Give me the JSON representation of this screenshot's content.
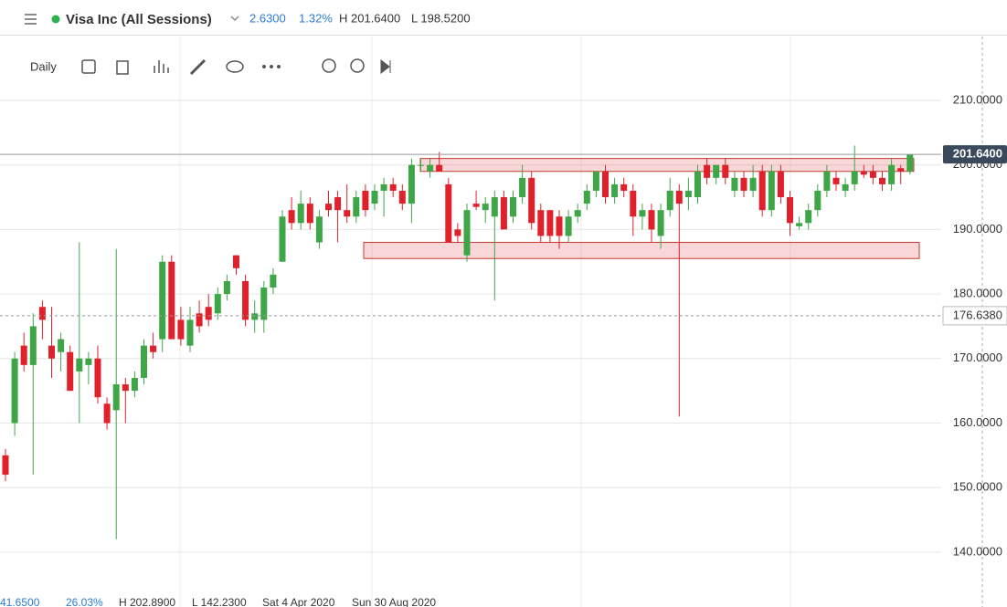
{
  "header": {
    "instrument": "Visa Inc (All Sessions)",
    "change": "2.6300",
    "change_pct": "1.32%",
    "high": "H 201.6400",
    "low": "L 198.5200"
  },
  "toolbar": {
    "interval": "Daily"
  },
  "footer": {
    "change": "41.6500",
    "change_pct": "26.03%",
    "high": "H 202.8900",
    "low": "L 142.2300",
    "from": "Sat 4 Apr 2020",
    "to": "Sun 30 Aug 2020"
  },
  "chart_data": {
    "type": "candlestick",
    "open": [
      155,
      160,
      172,
      169,
      178,
      172,
      171,
      171,
      168,
      169,
      170,
      163,
      162,
      166,
      165,
      167,
      172,
      173,
      185,
      176,
      172,
      177,
      178,
      177,
      180,
      186,
      182,
      176,
      176,
      181,
      185,
      193,
      191,
      194,
      188,
      194,
      195,
      193,
      192,
      196,
      194,
      196,
      197,
      196,
      194,
      200,
      199,
      200,
      197,
      190,
      186,
      194,
      193,
      192,
      195,
      192,
      195,
      198,
      193,
      193,
      192,
      189,
      192,
      194,
      196,
      199,
      195,
      197,
      196,
      192,
      193,
      189,
      193,
      196,
      195,
      195,
      200,
      198,
      200,
      196,
      198,
      196,
      199,
      193,
      199,
      195,
      190.5,
      191,
      193,
      196,
      198,
      196,
      197,
      199,
      199,
      198,
      197,
      199.5,
      199
    ],
    "high": [
      156,
      171,
      174,
      177,
      179,
      178,
      174,
      172,
      188,
      171,
      172,
      164,
      187,
      167,
      168,
      173,
      174,
      186,
      186,
      178,
      178,
      179,
      180,
      181,
      183,
      186,
      183,
      179,
      182,
      184,
      193,
      195,
      196,
      195,
      193,
      196,
      196,
      197,
      196,
      197,
      197,
      198,
      198,
      197,
      201,
      201,
      201,
      202,
      198,
      191,
      194,
      196,
      195,
      196,
      196,
      196,
      200,
      199,
      194,
      193,
      193,
      193,
      194,
      197,
      199,
      200,
      198,
      198,
      197,
      194,
      194,
      194,
      198,
      197,
      198,
      200,
      201,
      200,
      201,
      199,
      199,
      200,
      200,
      200,
      200,
      196,
      192,
      194,
      197,
      200,
      199,
      198,
      203,
      200,
      200,
      199,
      201,
      200,
      201.64
    ],
    "low": [
      151,
      158,
      168,
      152,
      173,
      167,
      168,
      165,
      160,
      166,
      163,
      159,
      142,
      160,
      164,
      166,
      170,
      171,
      173,
      172,
      171,
      174,
      175,
      176,
      179,
      183,
      175,
      174,
      174,
      180,
      185,
      190,
      190,
      190,
      187,
      192,
      188,
      191,
      191,
      192,
      193,
      192,
      195,
      193,
      191,
      199,
      198,
      199,
      188,
      188,
      185,
      193,
      191,
      179,
      190,
      191,
      194,
      190,
      188,
      188,
      187,
      188,
      191,
      193,
      195,
      194,
      194,
      195,
      189,
      190,
      188,
      187,
      192,
      161,
      193,
      194,
      197,
      197,
      197,
      195,
      195,
      195,
      192,
      192,
      194,
      189,
      190,
      190,
      192,
      195,
      196,
      195,
      196,
      198,
      197,
      196,
      196,
      197,
      198.52
    ],
    "close": [
      152,
      170,
      169,
      175,
      176,
      170,
      173,
      165,
      170,
      170,
      164,
      160,
      166,
      165,
      167,
      172,
      171,
      185,
      173,
      173,
      176,
      175,
      176,
      180,
      182,
      184,
      176,
      177,
      181,
      183,
      192,
      191,
      194,
      191,
      192,
      193,
      193,
      192,
      195,
      193,
      196,
      197,
      196,
      194,
      200,
      200,
      200,
      199,
      188,
      189,
      193,
      193.5,
      194,
      195,
      190,
      195,
      198,
      191,
      189,
      189,
      189,
      192,
      193,
      196,
      199,
      195,
      197,
      196,
      192,
      193,
      190,
      193,
      196,
      194,
      196,
      199,
      198,
      200,
      198,
      198,
      196,
      198,
      193,
      199,
      195,
      191,
      191,
      193,
      196,
      199,
      197,
      197,
      199,
      198.5,
      198,
      197,
      200,
      199,
      201.64
    ],
    "up_color": "#3fa648",
    "down_color": "#e0212b",
    "zones": [
      {
        "low": 199,
        "high": 201
      },
      {
        "low": 185.5,
        "high": 188
      }
    ],
    "last": {
      "value": 201.64,
      "label": "201.6400"
    },
    "reference": {
      "value": 176.638,
      "label": "176.6380"
    },
    "ylim": [
      131.5,
      219.9
    ],
    "yticks": [
      {
        "value": 140,
        "label": "140.0000"
      },
      {
        "value": 150,
        "label": "150.0000"
      },
      {
        "value": 160,
        "label": "160.0000"
      },
      {
        "value": 170,
        "label": "170.0000"
      },
      {
        "value": 180,
        "label": "180.0000"
      },
      {
        "value": 190,
        "label": "190.0000"
      },
      {
        "value": 200,
        "label": "200.0000"
      },
      {
        "value": 210,
        "label": "210.0000"
      }
    ],
    "grid": true
  }
}
